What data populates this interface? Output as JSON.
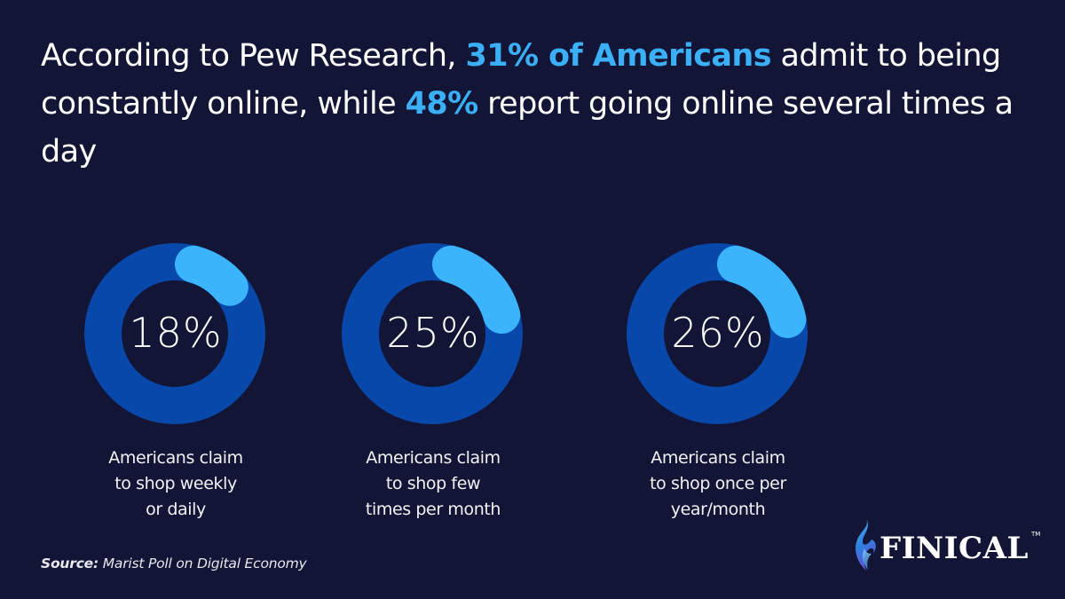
{
  "headline": {
    "part1": "According to Pew Research, ",
    "highlight1": "31% of Americans",
    "part2": " admit to being constantly online, while ",
    "highlight2": "48%",
    "part3": " report going online several times a day"
  },
  "colors": {
    "background": "#121535",
    "ring_base": "#0848ab",
    "ring_highlight": "#3bb4fb",
    "headline_highlight": "#3bb0f7",
    "text": "#ffffff"
  },
  "donuts": [
    {
      "value_label": "18%",
      "value": 18,
      "caption_lines": [
        "Americans claim",
        "to shop weekly",
        "or daily"
      ]
    },
    {
      "value_label": "25%",
      "value": 25,
      "caption_lines": [
        "Americans claim",
        "to shop few",
        "times per month"
      ]
    },
    {
      "value_label": "26%",
      "value": 26,
      "caption_lines": [
        "Americans claim",
        "to shop once per",
        "year/month"
      ]
    }
  ],
  "source": {
    "label": "Source:",
    "text": " Marist Poll on Digital Economy"
  },
  "logo": {
    "name": "FINICAL",
    "trademark": "TM",
    "icon": "flame-icon"
  },
  "chart_data": {
    "type": "pie",
    "subtype": "donut",
    "title": "According to Pew Research, 31% of Americans admit to being constantly online, while 48% report going online several times a day",
    "categories": [
      "Americans claim to shop weekly or daily",
      "Americans claim to shop few times per month",
      "Americans claim to shop once per year/month"
    ],
    "values": [
      18,
      25,
      26
    ],
    "unit": "%",
    "source": "Marist Poll on Digital Economy",
    "legend": "none",
    "grid": false
  }
}
